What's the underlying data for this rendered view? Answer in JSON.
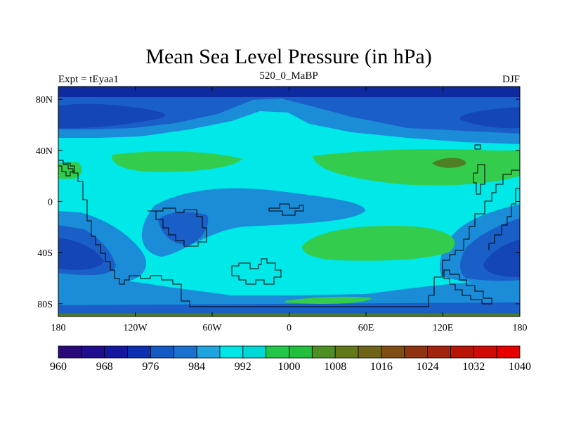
{
  "chart_data": {
    "type": "heatmap",
    "title": "Mean Sea Level Pressure (in hPa)",
    "left_string": "Expt = tEyaa1",
    "center_string": "520_0_MaBP",
    "right_string": "DJF",
    "x_range": [
      -180,
      180
    ],
    "y_range": [
      -90,
      90
    ],
    "x_ticks": [
      {
        "value": -180,
        "label": "180"
      },
      {
        "value": -120,
        "label": "120W"
      },
      {
        "value": -60,
        "label": "60W"
      },
      {
        "value": 0,
        "label": "0"
      },
      {
        "value": 60,
        "label": "60E"
      },
      {
        "value": 120,
        "label": "120E"
      },
      {
        "value": 180,
        "label": "180"
      }
    ],
    "y_ticks": [
      {
        "value": 80,
        "label": "80N"
      },
      {
        "value": 40,
        "label": "40N"
      },
      {
        "value": 0,
        "label": "0"
      },
      {
        "value": -40,
        "label": "40S"
      },
      {
        "value": -80,
        "label": "80S"
      }
    ],
    "colorbar": {
      "colors": [
        "#2a0a7a",
        "#200c8e",
        "#1418a0",
        "#0d30b2",
        "#1459c4",
        "#1a72d0",
        "#20a4e0",
        "#00e6e6",
        "#00d8d8",
        "#22c74a",
        "#22bf3c",
        "#4e8f24",
        "#637818",
        "#6f6418",
        "#7f4c14",
        "#8f3410",
        "#a3240c",
        "#b81408",
        "#d00a06",
        "#e80000"
      ],
      "labels": [
        {
          "after_index": 0,
          "label": "960"
        },
        {
          "after_index": 2,
          "label": "968"
        },
        {
          "after_index": 4,
          "label": "976"
        },
        {
          "after_index": 6,
          "label": "984"
        },
        {
          "after_index": 8,
          "label": "992"
        },
        {
          "after_index": 10,
          "label": "1000"
        },
        {
          "after_index": 12,
          "label": "1008"
        },
        {
          "after_index": 14,
          "label": "1016"
        },
        {
          "after_index": 16,
          "label": "1024"
        },
        {
          "after_index": 18,
          "label": "1032"
        },
        {
          "after_index": 20,
          "label": "1040"
        }
      ]
    },
    "field_colors": {
      "p968": "#0d2a9e",
      "p976": "#1446b8",
      "p984": "#1a5ec8",
      "p992": "#1a8cd8",
      "p1000": "#00e8e8",
      "p1008": "#33cc4d",
      "p1016": "#4e7f24"
    }
  }
}
